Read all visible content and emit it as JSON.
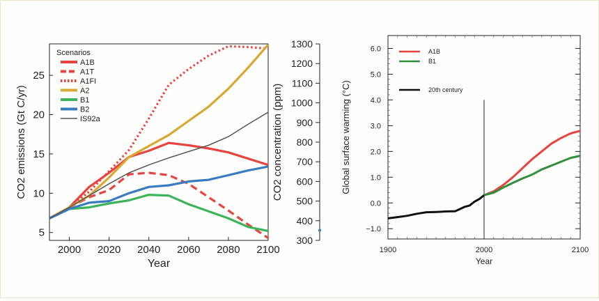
{
  "chart_data": [
    {
      "type": "line",
      "xlabel": "Year",
      "ylabel_left": "CO2 emissions (Gt C/yr)",
      "ylabel_right": "CO2 concentration (ppm)",
      "xlim": [
        1990,
        2100
      ],
      "ylim": [
        4,
        29
      ],
      "ylim_right": [
        300,
        1300
      ],
      "xticks": [
        2000,
        2020,
        2040,
        2060,
        2080,
        2100
      ],
      "yticks": [
        5,
        10,
        15,
        20,
        25
      ],
      "yticks_right": [
        300,
        400,
        500,
        600,
        700,
        800,
        900,
        1000,
        1100,
        1200,
        1300
      ],
      "grid": false,
      "legend": {
        "title": "Scenarios",
        "placement": "top-left"
      },
      "series": [
        {
          "name": "A1B",
          "color": "#e8433f",
          "style": "solid",
          "x": [
            1990,
            2000,
            2010,
            2020,
            2030,
            2040,
            2050,
            2060,
            2070,
            2080,
            2090,
            2100
          ],
          "y": [
            6.8,
            8.2,
            10.8,
            12.6,
            14.6,
            15.4,
            16.4,
            16.1,
            15.7,
            15.2,
            14.4,
            13.6
          ]
        },
        {
          "name": "A1T",
          "color": "#e8433f",
          "style": "dashed",
          "x": [
            1990,
            2000,
            2010,
            2020,
            2030,
            2040,
            2050,
            2060,
            2070,
            2080,
            2090,
            2100
          ],
          "y": [
            6.8,
            8.2,
            9.5,
            10.4,
            12.4,
            12.6,
            12.3,
            11.2,
            9.5,
            7.8,
            6.0,
            4.3
          ]
        },
        {
          "name": "A1FI",
          "color": "#e8433f",
          "style": "dotted",
          "x": [
            1990,
            2000,
            2010,
            2020,
            2030,
            2040,
            2050,
            2060,
            2070,
            2080,
            2090,
            2100
          ],
          "y": [
            6.8,
            8.2,
            10.2,
            12.8,
            15.5,
            19.5,
            23.8,
            25.8,
            27.5,
            28.7,
            28.6,
            28.4
          ]
        },
        {
          "name": "A2",
          "color": "#d9a830",
          "style": "solid",
          "x": [
            1990,
            2000,
            2010,
            2020,
            2030,
            2040,
            2050,
            2060,
            2070,
            2080,
            2090,
            2100
          ],
          "y": [
            6.8,
            8.2,
            9.7,
            12.0,
            14.6,
            16.0,
            17.4,
            19.2,
            21.0,
            23.3,
            26.0,
            28.9
          ]
        },
        {
          "name": "B1",
          "color": "#3cb55a",
          "style": "solid",
          "x": [
            1990,
            2000,
            2010,
            2020,
            2030,
            2040,
            2050,
            2060,
            2070,
            2080,
            2090,
            2100
          ],
          "y": [
            6.8,
            8.0,
            8.2,
            8.7,
            9.1,
            9.8,
            9.7,
            8.6,
            7.7,
            6.8,
            5.7,
            5.2
          ]
        },
        {
          "name": "B2",
          "color": "#3a7cc2",
          "style": "solid",
          "x": [
            1990,
            2000,
            2010,
            2020,
            2030,
            2040,
            2050,
            2060,
            2070,
            2080,
            2090,
            2100
          ],
          "y": [
            6.8,
            8.0,
            8.8,
            9.0,
            10.0,
            10.8,
            11.0,
            11.5,
            11.7,
            12.3,
            12.9,
            13.4
          ]
        },
        {
          "name": "IS92a",
          "color": "#555555",
          "style": "solid",
          "thin": true,
          "x": [
            1990,
            2000,
            2010,
            2020,
            2030,
            2040,
            2050,
            2060,
            2070,
            2080,
            2090,
            2100
          ],
          "y": [
            6.8,
            8.2,
            9.7,
            11.2,
            12.6,
            13.6,
            14.5,
            15.3,
            16.1,
            17.2,
            18.8,
            20.3
          ]
        }
      ]
    },
    {
      "type": "line",
      "xlabel": "Year",
      "ylabel": "Global surface warming (°C)",
      "xlim": [
        1900,
        2100
      ],
      "ylim": [
        -1.4,
        6.5
      ],
      "xticks": [
        1900,
        2000,
        2100
      ],
      "yticks": [
        -1.0,
        0.0,
        1.0,
        2.0,
        3.0,
        4.0,
        5.0,
        6.0
      ],
      "ytick_labels": [
        "−1.0",
        "0.0",
        "1.0",
        "2.0",
        "3.0",
        "4.0",
        "5.0",
        "6.0"
      ],
      "grid": false,
      "legend": {
        "placement": "top-left"
      },
      "vertical_marker_year": 2000,
      "series": [
        {
          "name": "A1B",
          "color": "#e8433f",
          "x": [
            2000,
            2010,
            2020,
            2030,
            2040,
            2050,
            2060,
            2070,
            2080,
            2090,
            2100
          ],
          "y": [
            0.3,
            0.45,
            0.7,
            1.0,
            1.35,
            1.7,
            2.0,
            2.3,
            2.52,
            2.7,
            2.8
          ]
        },
        {
          "name": "B1",
          "color": "#2f8f3a",
          "x": [
            2000,
            2010,
            2020,
            2030,
            2040,
            2050,
            2060,
            2070,
            2080,
            2090,
            2100
          ],
          "y": [
            0.3,
            0.4,
            0.6,
            0.78,
            0.95,
            1.1,
            1.3,
            1.45,
            1.6,
            1.75,
            1.83
          ]
        },
        {
          "name": "20th century",
          "color": "#111111",
          "x": [
            1900,
            1910,
            1920,
            1930,
            1940,
            1950,
            1960,
            1970,
            1980,
            1985,
            1990,
            1995,
            2000
          ],
          "y": [
            -0.6,
            -0.55,
            -0.5,
            -0.42,
            -0.36,
            -0.35,
            -0.33,
            -0.32,
            -0.15,
            -0.1,
            0.05,
            0.15,
            0.3
          ]
        }
      ]
    }
  ]
}
